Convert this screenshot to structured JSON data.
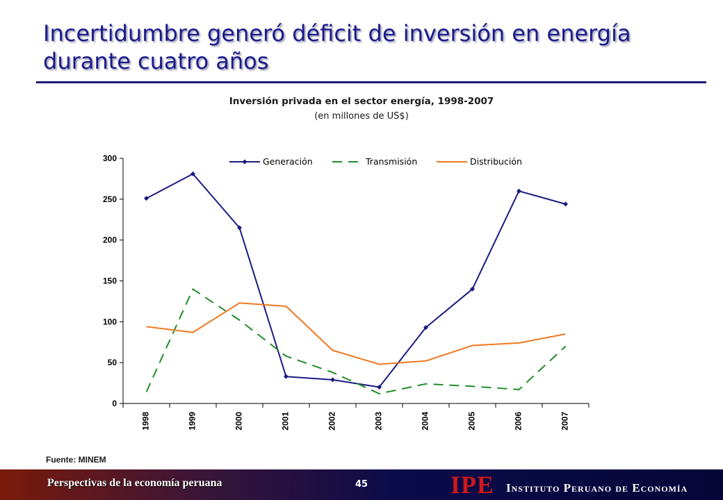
{
  "slide": {
    "title": "Incertidumbre generó déficit de inversión en energía durante cuatro años"
  },
  "chart_data": {
    "type": "line",
    "title": "Inversión privada en el sector energía, 1998-2007",
    "subtitle": "(en millones de US$)",
    "categories": [
      "1998",
      "1999",
      "2000",
      "2001",
      "2002",
      "2003",
      "2004",
      "2005",
      "2006",
      "2007"
    ],
    "ylim": [
      0,
      300
    ],
    "yticks": [
      0,
      50,
      100,
      150,
      200,
      250,
      300
    ],
    "grid": false,
    "legend_position": "top",
    "series": [
      {
        "name": "Generación",
        "color": "#1a1a80",
        "style": "solid-markers",
        "values": [
          251,
          281,
          215,
          33,
          29,
          20,
          93,
          140,
          260,
          244
        ]
      },
      {
        "name": "Transmisión",
        "color": "#1f8c2a",
        "style": "dashed",
        "values": [
          14,
          140,
          102,
          58,
          38,
          12,
          24,
          21,
          17,
          70
        ]
      },
      {
        "name": "Distribución",
        "color": "#f07820",
        "style": "solid",
        "values": [
          94,
          87,
          123,
          119,
          65,
          48,
          52,
          71,
          74,
          85
        ]
      }
    ]
  },
  "source_note": "Fuente: MINEM",
  "footer": {
    "left_text": "Perspectivas de la economía peruana",
    "page_number": "45",
    "logo_text": "IPE",
    "institution": "Instituto Peruano de Economía"
  }
}
